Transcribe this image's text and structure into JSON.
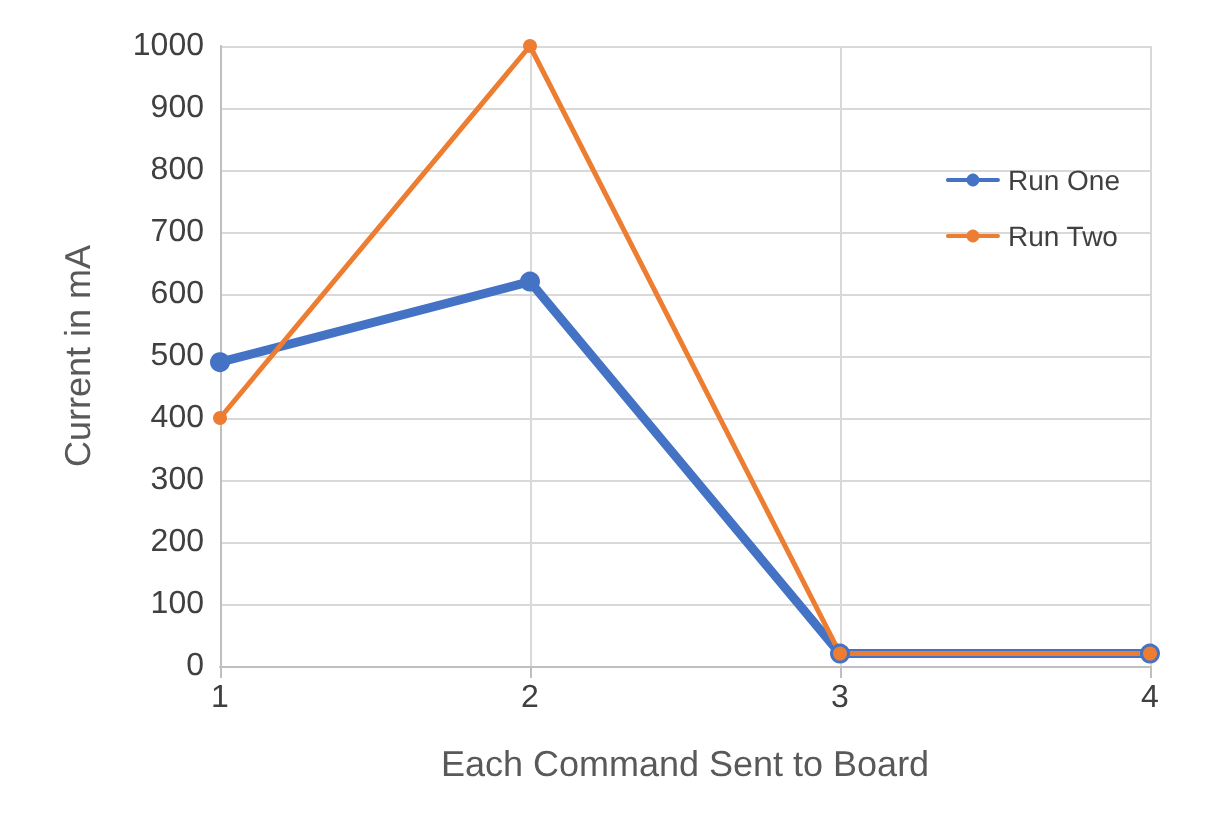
{
  "chart_data": {
    "type": "line",
    "xlabel": "Each Command Sent to Board",
    "ylabel": "Current in mA",
    "x": [
      1,
      2,
      3,
      4
    ],
    "series": [
      {
        "name": "Run One",
        "color": "#4472c4",
        "values": [
          490,
          620,
          20,
          20
        ]
      },
      {
        "name": "Run Two",
        "color": "#ed7d31",
        "values": [
          400,
          1000,
          20,
          20
        ]
      }
    ],
    "xlim": [
      1,
      4
    ],
    "xticks": [
      1,
      2,
      3,
      4
    ],
    "ylim": [
      0,
      1000
    ],
    "yticks": [
      0,
      100,
      200,
      300,
      400,
      500,
      600,
      700,
      800,
      900,
      1000
    ],
    "grid": true,
    "legend": "top right",
    "marker": "circle",
    "line_style": "solid"
  }
}
